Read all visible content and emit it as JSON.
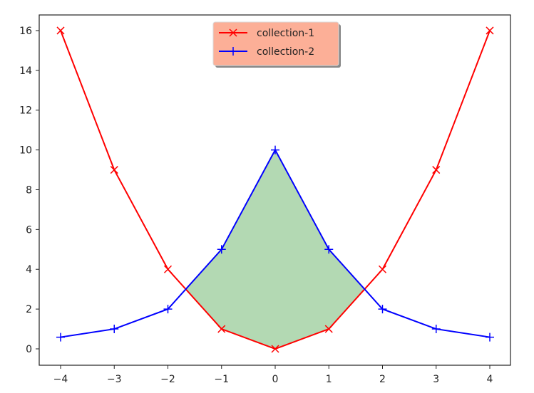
{
  "chart_data": {
    "type": "line",
    "title": "",
    "xlabel": "",
    "ylabel": "",
    "xlim": [
      -4.4,
      4.4
    ],
    "ylim": [
      -0.8,
      16.8
    ],
    "x": [
      -4,
      -3,
      -2,
      -1,
      0,
      1,
      2,
      3,
      4
    ],
    "xticks": [
      -4,
      -3,
      -2,
      -1,
      0,
      1,
      2,
      3,
      4
    ],
    "xtick_labels": [
      "−4",
      "−3",
      "−2",
      "−1",
      "0",
      "1",
      "2",
      "3",
      "4"
    ],
    "yticks": [
      0,
      2,
      4,
      6,
      8,
      10,
      12,
      14,
      16
    ],
    "ytick_labels": [
      "0",
      "2",
      "4",
      "6",
      "8",
      "10",
      "12",
      "14",
      "16"
    ],
    "grid": false,
    "series": [
      {
        "name": "collection-1",
        "color": "#ff0000",
        "marker": "x",
        "values": [
          16,
          9,
          4,
          1,
          0,
          1,
          4,
          9,
          16
        ]
      },
      {
        "name": "collection-2",
        "color": "#0000ff",
        "marker": "+",
        "values": [
          0.588,
          1,
          2,
          5,
          10,
          5,
          2,
          1,
          0.588
        ]
      }
    ],
    "fill_between": {
      "where": "collection-2 > collection-1",
      "color": "#b3d9b3",
      "x_range": [
        -1.667,
        1.667
      ]
    },
    "legend": {
      "position": "upper center",
      "facecolor": "#fcaf97",
      "shadow": true,
      "entries": [
        "collection-1",
        "collection-2"
      ]
    }
  }
}
